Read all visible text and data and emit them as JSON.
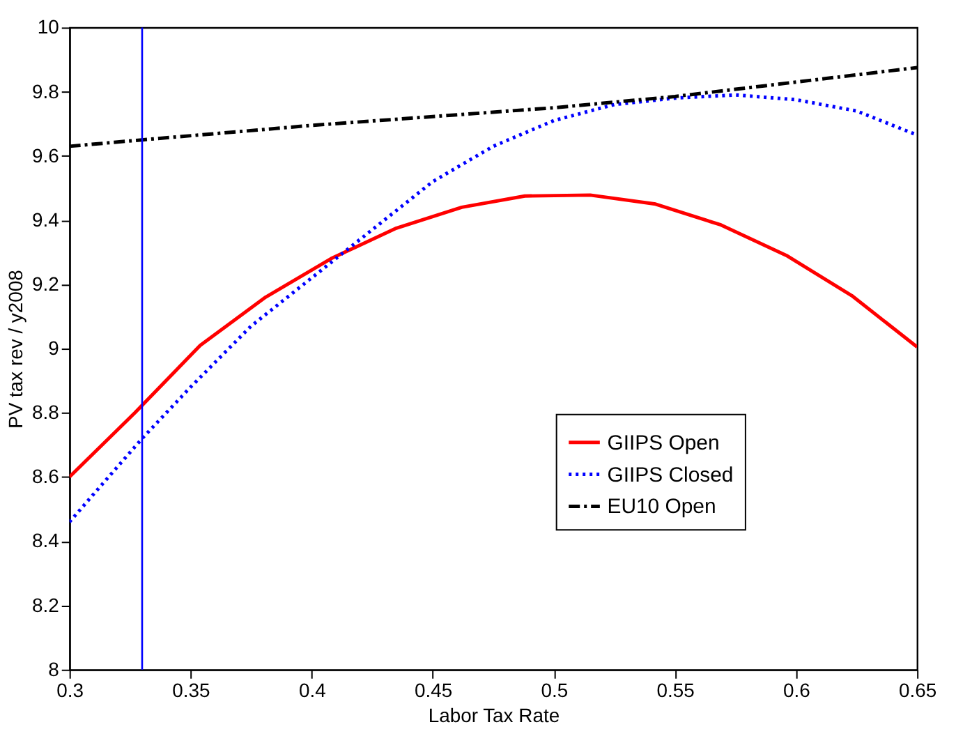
{
  "chart_data": {
    "type": "line",
    "xlabel": "Labor Tax Rate",
    "ylabel": "PV tax rev / y2008",
    "xlim": [
      0.3,
      0.65
    ],
    "xticks": [
      0.3,
      0.35,
      0.4,
      0.45,
      0.5,
      0.55,
      0.6,
      0.65
    ],
    "ylim": [
      8,
      10
    ],
    "yticks": [
      8,
      8.2,
      8.4,
      8.6,
      8.8,
      9,
      9.2,
      9.4,
      9.6,
      9.8,
      10
    ],
    "grid": false,
    "legend": "right",
    "marker": "none",
    "series": [
      {
        "name": "GIIPS Open",
        "color": "#ff0000",
        "line_style": "solid",
        "x": [
          0.3,
          0.327,
          0.354,
          0.381,
          0.408,
          0.435,
          0.462,
          0.488,
          0.515,
          0.542,
          0.569,
          0.596,
          0.623,
          0.65
        ],
        "values": [
          8.6,
          8.8,
          9.01,
          9.16,
          9.28,
          9.375,
          9.44,
          9.475,
          9.478,
          9.45,
          9.385,
          9.29,
          9.165,
          9.005
        ]
      },
      {
        "name": "GIIPS Closed",
        "color": "#0000ff",
        "line_style": "dotted",
        "x": [
          0.3,
          0.33,
          0.35,
          0.375,
          0.4,
          0.425,
          0.45,
          0.475,
          0.5,
          0.525,
          0.55,
          0.575,
          0.6,
          0.625,
          0.65
        ],
        "values": [
          8.46,
          8.72,
          8.88,
          9.07,
          9.22,
          9.37,
          9.52,
          9.63,
          9.71,
          9.76,
          9.78,
          9.79,
          9.775,
          9.74,
          9.665
        ]
      },
      {
        "name": "EU10 Open",
        "color": "#000000",
        "line_style": "dashdot",
        "x": [
          0.3,
          0.33,
          0.4,
          0.5,
          0.55,
          0.6,
          0.65
        ],
        "values": [
          9.63,
          9.65,
          9.695,
          9.75,
          9.785,
          9.83,
          9.875
        ]
      }
    ],
    "ref_lines": [
      {
        "axis": "x",
        "value": 0.33,
        "color": "#0000ff",
        "line_style": "solid"
      }
    ]
  }
}
